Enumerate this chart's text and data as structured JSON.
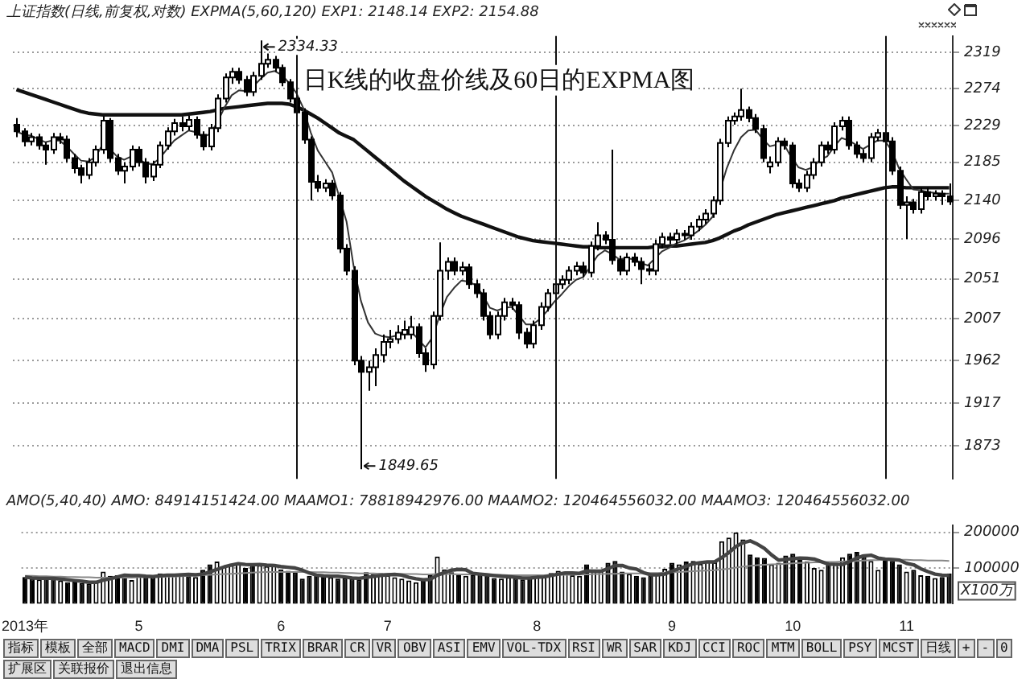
{
  "chart_data": [
    {
      "type": "candlestick",
      "subtitle": "上证指数(日线,前复权,对数) EXPMA(5,60,120) EXP1: 2148.14 EXP2: 2154.88",
      "title": "日K线的收盘价线及60日的EXPMA图",
      "categories": [
        null,
        null,
        null,
        null,
        null,
        null,
        null,
        null,
        null,
        null,
        null,
        null,
        null,
        null,
        null,
        null,
        null,
        null,
        null,
        null,
        null,
        null,
        null,
        null,
        null,
        null,
        null,
        null,
        null,
        null,
        null,
        null,
        null,
        null,
        null,
        null,
        null,
        null,
        null,
        null,
        null,
        null,
        null,
        null,
        null,
        null,
        null,
        null,
        null,
        null,
        null,
        null,
        null,
        null,
        null,
        null,
        null,
        null,
        null,
        null,
        null,
        null,
        null,
        null,
        null,
        null,
        null,
        null,
        null,
        null,
        null,
        null,
        null,
        null,
        null,
        null,
        null,
        null,
        null,
        null,
        null,
        null,
        null,
        null,
        null,
        null,
        null,
        null,
        null,
        null,
        null,
        null,
        null,
        null,
        null,
        null,
        null,
        null,
        null,
        null,
        null,
        null,
        null,
        null,
        null,
        null,
        null,
        null,
        null,
        null,
        null,
        null,
        null,
        null,
        null,
        null,
        null,
        null,
        null,
        null,
        null,
        null,
        null,
        null,
        null,
        null,
        null,
        null,
        null,
        null,
        null
      ],
      "ohlc": [
        [
          2230,
          2238,
          2215,
          2222
        ],
        [
          2222,
          2226,
          2204,
          2210
        ],
        [
          2210,
          2220,
          2205,
          2215
        ],
        [
          2215,
          2219,
          2200,
          2205
        ],
        [
          2205,
          2209,
          2182,
          2200
        ],
        [
          2200,
          2220,
          2195,
          2215
        ],
        [
          2215,
          2220,
          2207,
          2212
        ],
        [
          2212,
          2217,
          2185,
          2190
        ],
        [
          2190,
          2195,
          2172,
          2178
        ],
        [
          2178,
          2182,
          2160,
          2170
        ],
        [
          2170,
          2190,
          2165,
          2185
        ],
        [
          2185,
          2205,
          2180,
          2200
        ],
        [
          2200,
          2240,
          2195,
          2235
        ],
        [
          2235,
          2238,
          2185,
          2190
        ],
        [
          2190,
          2195,
          2170,
          2175
        ],
        [
          2175,
          2185,
          2160,
          2180
        ],
        [
          2180,
          2205,
          2175,
          2200
        ],
        [
          2200,
          2204,
          2180,
          2185
        ],
        [
          2185,
          2190,
          2160,
          2168
        ],
        [
          2168,
          2187,
          2163,
          2182
        ],
        [
          2182,
          2210,
          2178,
          2205
        ],
        [
          2205,
          2227,
          2200,
          2222
        ],
        [
          2222,
          2237,
          2217,
          2232
        ],
        [
          2232,
          2240,
          2222,
          2228
        ],
        [
          2228,
          2241,
          2223,
          2236
        ],
        [
          2236,
          2240,
          2213,
          2218
        ],
        [
          2218,
          2222,
          2199,
          2204
        ],
        [
          2204,
          2231,
          2199,
          2226
        ],
        [
          2226,
          2267,
          2221,
          2262
        ],
        [
          2262,
          2293,
          2257,
          2288
        ],
        [
          2288,
          2300,
          2280,
          2295
        ],
        [
          2295,
          2300,
          2280,
          2285
        ],
        [
          2285,
          2290,
          2265,
          2270
        ],
        [
          2270,
          2295,
          2265,
          2290
        ],
        [
          2290,
          2334.33,
          2285,
          2305
        ],
        [
          2305,
          2318,
          2300,
          2310
        ],
        [
          2310,
          2315,
          2295,
          2300
        ],
        [
          2300,
          2304,
          2277,
          2282
        ],
        [
          2282,
          2286,
          2257,
          2262
        ],
        [
          2262,
          2266,
          2240,
          2245
        ],
        [
          2245,
          2250,
          2207,
          2212
        ],
        [
          2212,
          2216,
          2140,
          2162
        ],
        [
          2162,
          2170,
          2150,
          2155
        ],
        [
          2155,
          2165,
          2150,
          2160
        ],
        [
          2160,
          2164,
          2141,
          2146
        ],
        [
          2146,
          2150,
          2080,
          2085
        ],
        [
          2085,
          2090,
          2055,
          2060
        ],
        [
          2060,
          2065,
          1957,
          1962
        ],
        [
          1962,
          1967,
          1849.65,
          1950
        ],
        [
          1950,
          1962,
          1930,
          1955
        ],
        [
          1955,
          1975,
          1935,
          1968
        ],
        [
          1968,
          1990,
          1960,
          1982
        ],
        [
          1982,
          1995,
          1975,
          1985
        ],
        [
          1985,
          2000,
          1980,
          1992
        ],
        [
          1990,
          2005,
          1985,
          1995
        ],
        [
          1990,
          2010,
          1985,
          1998
        ],
        [
          1998,
          2002,
          1965,
          1970
        ],
        [
          1970,
          1975,
          1950,
          1958
        ],
        [
          1958,
          2015,
          1953,
          2010
        ],
        [
          2010,
          2092,
          2005,
          2060
        ],
        [
          2060,
          2075,
          2050,
          2070
        ],
        [
          2070,
          2075,
          2055,
          2060
        ],
        [
          2060,
          2070,
          2055,
          2064
        ],
        [
          2064,
          2068,
          2040,
          2045
        ],
        [
          2045,
          2050,
          2030,
          2035
        ],
        [
          2035,
          2040,
          2005,
          2010
        ],
        [
          2010,
          2015,
          1985,
          1990
        ],
        [
          1990,
          2015,
          1985,
          2010
        ],
        [
          2010,
          2030,
          2005,
          2025
        ],
        [
          2025,
          2030,
          2017,
          2022
        ],
        [
          2022,
          2026,
          1985,
          1992
        ],
        [
          1992,
          1997,
          1975,
          1980
        ],
        [
          1980,
          2005,
          1975,
          2000
        ],
        [
          2000,
          2025,
          1995,
          2020
        ],
        [
          2020,
          2040,
          2015,
          2035
        ],
        [
          2035,
          2050,
          2030,
          2045
        ],
        [
          2045,
          2055,
          2040,
          2050
        ],
        [
          2050,
          2065,
          2045,
          2060
        ],
        [
          2060,
          2070,
          2055,
          2065
        ],
        [
          2065,
          2070,
          2053,
          2058
        ],
        [
          2058,
          2093,
          2053,
          2088
        ],
        [
          2088,
          2115,
          2083,
          2100
        ],
        [
          2100,
          2105,
          2090,
          2095
        ],
        [
          2095,
          2200,
          2067,
          2072
        ],
        [
          2072,
          2077,
          2055,
          2060
        ],
        [
          2060,
          2080,
          2055,
          2075
        ],
        [
          2075,
          2080,
          2065,
          2070
        ],
        [
          2070,
          2075,
          2045,
          2062
        ],
        [
          2062,
          2067,
          2055,
          2060
        ],
        [
          2060,
          2095,
          2055,
          2090
        ],
        [
          2090,
          2103,
          2085,
          2098
        ],
        [
          2098,
          2103,
          2090,
          2095
        ],
        [
          2095,
          2107,
          2090,
          2102
        ],
        [
          2102,
          2106,
          2095,
          2100
        ],
        [
          2100,
          2115,
          2095,
          2110
        ],
        [
          2110,
          2123,
          2105,
          2118
        ],
        [
          2118,
          2130,
          2113,
          2125
        ],
        [
          2125,
          2145,
          2120,
          2140
        ],
        [
          2140,
          2213,
          2135,
          2208
        ],
        [
          2208,
          2240,
          2203,
          2235
        ],
        [
          2235,
          2245,
          2230,
          2240
        ],
        [
          2240,
          2274,
          2235,
          2248
        ],
        [
          2248,
          2252,
          2233,
          2238
        ],
        [
          2238,
          2243,
          2220,
          2225
        ],
        [
          2225,
          2230,
          2185,
          2190
        ],
        [
          2180,
          2192,
          2172,
          2185
        ],
        [
          2185,
          2215,
          2180,
          2210
        ],
        [
          2210,
          2214,
          2200,
          2205
        ],
        [
          2205,
          2209,
          2155,
          2160
        ],
        [
          2160,
          2165,
          2150,
          2155
        ],
        [
          2155,
          2175,
          2150,
          2170
        ],
        [
          2170,
          2190,
          2165,
          2185
        ],
        [
          2185,
          2210,
          2180,
          2205
        ],
        [
          2205,
          2210,
          2195,
          2200
        ],
        [
          2200,
          2233,
          2195,
          2228
        ],
        [
          2228,
          2240,
          2223,
          2235
        ],
        [
          2235,
          2240,
          2200,
          2205
        ],
        [
          2205,
          2210,
          2190,
          2195
        ],
        [
          2195,
          2200,
          2185,
          2190
        ],
        [
          2190,
          2220,
          2185,
          2215
        ],
        [
          2215,
          2225,
          2210,
          2220
        ],
        [
          2220,
          2225,
          2205,
          2210
        ],
        [
          2210,
          2215,
          2170,
          2175
        ],
        [
          2175,
          2180,
          2130,
          2135
        ],
        [
          2135,
          2145,
          2096,
          2138
        ],
        [
          2138,
          2142,
          2125,
          2130
        ],
        [
          2130,
          2155,
          2125,
          2150
        ],
        [
          2150,
          2155,
          2140,
          2145
        ],
        [
          2145,
          2152,
          2140,
          2148
        ],
        [
          2148,
          2152,
          2135,
          2145
        ],
        [
          2145,
          2160,
          2135,
          2139
        ]
      ],
      "series": [
        {
          "type": "line",
          "color": "#333333",
          "values": [
            2222,
            2218,
            2217,
            2213,
            2209,
            2211,
            2211,
            2204,
            2195,
            2187,
            2186,
            2191,
            2206,
            2201,
            2192,
            2188,
            2192,
            2190,
            2183,
            2183,
            2190,
            2201,
            2211,
            2217,
            2223,
            2221,
            2215,
            2219,
            2233,
            2251,
            2266,
            2272,
            2271,
            2277,
            2286,
            2294,
            2296,
            2291,
            2281,
            2269,
            2250,
            2221,
            2199,
            2186,
            2173,
            2144,
            2116,
            2065,
            2027,
            2003,
            1991,
            1988,
            1987,
            1989,
            1991,
            1993,
            1985,
            1976,
            1987,
            2011,
            2031,
            2041,
            2049,
            2048,
            2044,
            2033,
            2019,
            2016,
            2019,
            2020,
            2011,
            2001,
            2001,
            2007,
            2016,
            2026,
            2034,
            2043,
            2050,
            2053,
            2065,
            2077,
            2083,
            2079,
            2073,
            2074,
            2073,
            2069,
            2066,
            2074,
            2082,
            2086,
            2091,
            2094,
            2099,
            2105,
            2112,
            2121,
            2150,
            2178,
            2199,
            2215,
            2223,
            2224,
            2213,
            2204,
            2206,
            2206,
            2191,
            2179,
            2176,
            2179,
            2188,
            2192,
            2204,
            2214,
            2211,
            2206,
            2201,
            2206,
            2211,
            2211,
            2199,
            2178,
            2165,
            2153,
            2152,
            2150,
            2149,
            2148,
            2148
          ]
        },
        {
          "type": "line",
          "color": "#111111",
          "values": [
            2273,
            2270,
            2267,
            2264,
            2261,
            2258,
            2255,
            2252,
            2249,
            2246,
            2244,
            2243,
            2242,
            2242,
            2242,
            2242,
            2242,
            2242,
            2242,
            2242,
            2242,
            2242,
            2242,
            2242,
            2243,
            2244,
            2245,
            2246,
            2248,
            2250,
            2251,
            2252,
            2253,
            2254,
            2255,
            2256,
            2256,
            2256,
            2255,
            2252,
            2248,
            2243,
            2238,
            2232,
            2226,
            2220,
            2216,
            2212,
            2205,
            2198,
            2191,
            2184,
            2177,
            2170,
            2163,
            2157,
            2151,
            2145,
            2140,
            2135,
            2130,
            2126,
            2122,
            2119,
            2116,
            2113,
            2110,
            2107,
            2104,
            2101,
            2098,
            2096,
            2094,
            2093,
            2092,
            2091,
            2090,
            2089,
            2088,
            2087,
            2087,
            2086,
            2086,
            2086,
            2086,
            2086,
            2086,
            2086,
            2086,
            2087,
            2087,
            2088,
            2088,
            2089,
            2090,
            2091,
            2092,
            2094,
            2097,
            2101,
            2105,
            2108,
            2112,
            2115,
            2118,
            2121,
            2124,
            2126,
            2128,
            2130,
            2132,
            2134,
            2136,
            2138,
            2140,
            2143,
            2145,
            2147,
            2149,
            2151,
            2153,
            2155,
            2156,
            2156,
            2155,
            2155,
            2155,
            2155,
            2155,
            2155,
            2155
          ]
        }
      ],
      "ylim": [
        1840,
        2340
      ],
      "yticks": [
        1873,
        1917,
        1962,
        2007,
        2051,
        2096,
        2140,
        2185,
        2229,
        2274,
        2319
      ],
      "log": true,
      "grid": "y",
      "tick_labels": "y",
      "annotations": [
        "2334.33",
        "1849.65"
      ]
    },
    {
      "type": "bar",
      "title": "AMO(5,40,40) AMO: 84914151424.00 MAAMO1: 78818942976.00 MAAMO2: 120464556032.00 MAAMO3: 120464556032.00",
      "categories": [
        "2013年",
        null,
        null,
        null,
        null,
        null,
        null,
        null,
        null,
        null,
        null,
        null,
        null,
        null,
        null,
        null,
        "5",
        null,
        null,
        null,
        null,
        null,
        null,
        null,
        null,
        null,
        null,
        null,
        null,
        null,
        null,
        null,
        null,
        null,
        null,
        null,
        "6",
        null,
        null,
        null,
        null,
        null,
        null,
        null,
        null,
        null,
        null,
        null,
        null,
        null,
        null,
        "7",
        null,
        null,
        null,
        null,
        null,
        null,
        null,
        null,
        null,
        null,
        null,
        null,
        null,
        null,
        null,
        null,
        null,
        null,
        null,
        null,
        "8",
        null,
        null,
        null,
        null,
        null,
        null,
        null,
        null,
        null,
        null,
        null,
        null,
        null,
        null,
        null,
        null,
        null,
        null,
        "9",
        null,
        null,
        null,
        null,
        null,
        null,
        null,
        null,
        null,
        null,
        null,
        null,
        null,
        null,
        null,
        null,
        "10",
        null,
        null,
        null,
        null,
        null,
        null,
        null,
        null,
        null,
        null,
        null,
        null,
        null,
        null,
        null,
        "11",
        null,
        null,
        null,
        null,
        null,
        null
      ],
      "series": [
        {
          "type": "bar",
          "values": [
            75000,
            70000,
            68000,
            72000,
            70000,
            65000,
            60000,
            62000,
            58000,
            56000,
            62000,
            90000,
            78000,
            80000,
            82000,
            66000,
            80000,
            78000,
            75000,
            85000,
            80000,
            82000,
            85000,
            78000,
            75000,
            95000,
            110000,
            118000,
            105000,
            112000,
            115000,
            100000,
            110000,
            108000,
            105000,
            112000,
            96000,
            92000,
            88000,
            70000,
            78000,
            82000,
            80000,
            74000,
            70000,
            72000,
            70000,
            68000,
            88000,
            82000,
            86000,
            80000,
            74000,
            70000,
            65000,
            60000,
            66000,
            82000,
            132000,
            96000,
            88000,
            80000,
            78000,
            82000,
            85000,
            78000,
            72000,
            70000,
            74000,
            72000,
            68000,
            76000,
            78000,
            82000,
            86000,
            92000,
            90000,
            80000,
            78000,
            110000,
            96000,
            92000,
            115000,
            120000,
            90000,
            84000,
            78000,
            74000,
            80000,
            86000,
            98000,
            115000,
            110000,
            118000,
            120000,
            112000,
            118000,
            116000,
            175000,
            185000,
            200000,
            180000,
            138000,
            130000,
            128000,
            110000,
            115000,
            135000,
            140000,
            130000,
            118000,
            100000,
            95000,
            112000,
            115000,
            130000,
            140000,
            145000,
            138000,
            120000,
            95000,
            128000,
            120000,
            110000,
            90000,
            95000,
            80000,
            78000,
            72000,
            75000,
            85000
          ],
          "colors": [
            "#000000",
            "#000000",
            "#ffffff",
            "#000000",
            "#000000",
            "#ffffff",
            "#000000",
            "#000000",
            "#000000",
            "#000000",
            "#ffffff",
            "#ffffff",
            "#ffffff",
            "#000000",
            "#000000",
            "#ffffff",
            "#ffffff",
            "#000000",
            "#000000",
            "#ffffff",
            "#ffffff",
            "#ffffff",
            "#ffffff",
            "#000000",
            "#ffffff",
            "#000000",
            "#000000",
            "#ffffff",
            "#ffffff",
            "#ffffff",
            "#ffffff",
            "#000000",
            "#000000",
            "#ffffff",
            "#ffffff",
            "#ffffff",
            "#000000",
            "#000000",
            "#000000",
            "#000000",
            "#000000",
            "#000000",
            "#000000",
            "#ffffff",
            "#000000",
            "#000000",
            "#000000",
            "#000000",
            "#000000",
            "#ffffff",
            "#ffffff",
            "#ffffff",
            "#ffffff",
            "#ffffff",
            "#ffffff",
            "#ffffff",
            "#000000",
            "#000000",
            "#ffffff",
            "#ffffff",
            "#ffffff",
            "#000000",
            "#ffffff",
            "#000000",
            "#000000",
            "#000000",
            "#000000",
            "#ffffff",
            "#ffffff",
            "#000000",
            "#000000",
            "#000000",
            "#ffffff",
            "#ffffff",
            "#ffffff",
            "#ffffff",
            "#ffffff",
            "#ffffff",
            "#ffffff",
            "#000000",
            "#ffffff",
            "#ffffff",
            "#000000",
            "#000000",
            "#000000",
            "#ffffff",
            "#000000",
            "#000000",
            "#000000",
            "#ffffff",
            "#ffffff",
            "#000000",
            "#ffffff",
            "#000000",
            "#ffffff",
            "#ffffff",
            "#ffffff",
            "#ffffff",
            "#ffffff",
            "#ffffff",
            "#ffffff",
            "#ffffff",
            "#000000",
            "#000000",
            "#000000",
            "#ffffff",
            "#ffffff",
            "#000000",
            "#000000",
            "#000000",
            "#ffffff",
            "#ffffff",
            "#ffffff",
            "#000000",
            "#ffffff",
            "#ffffff",
            "#000000",
            "#000000",
            "#000000",
            "#ffffff",
            "#ffffff",
            "#000000",
            "#000000",
            "#000000",
            "#ffffff",
            "#000000",
            "#ffffff",
            "#000000",
            "#ffffff",
            "#000000",
            "#000000"
          ]
        },
        {
          "type": "line",
          "color": "#444444",
          "values": [
            75000,
            72000,
            71000,
            71000,
            71000,
            69000,
            67000,
            65000,
            63000,
            60000,
            60000,
            66000,
            70000,
            75000,
            80000,
            79000,
            79000,
            77000,
            76000,
            78000,
            80000,
            80000,
            81000,
            82000,
            81000,
            83000,
            89000,
            96000,
            103000,
            108000,
            112000,
            110000,
            109000,
            110000,
            108000,
            107000,
            104000,
            102000,
            100000,
            94000,
            86000,
            80000,
            78000,
            77000,
            77000,
            75000,
            72000,
            71000,
            74000,
            76000,
            79000,
            81000,
            82000,
            80000,
            74000,
            70000,
            67000,
            68000,
            80000,
            87000,
            94000,
            96000,
            95000,
            85000,
            83000,
            81000,
            79000,
            77000,
            76000,
            74000,
            72000,
            72000,
            74000,
            75000,
            79000,
            83000,
            86000,
            86000,
            85000,
            92000,
            91000,
            91000,
            98000,
            107000,
            107000,
            100000,
            97000,
            87000,
            81000,
            81000,
            83000,
            91000,
            98000,
            105000,
            112000,
            115000,
            117000,
            117000,
            129000,
            143000,
            160000,
            171000,
            176000,
            167000,
            155000,
            137000,
            122000,
            124000,
            126000,
            128000,
            127000,
            125000,
            118000,
            111000,
            110000,
            110000,
            118000,
            128000,
            134000,
            136000,
            128000,
            125000,
            124000,
            122000,
            113000,
            109000,
            98000,
            90000,
            83000,
            80000,
            79000
          ]
        },
        {
          "type": "line",
          "color": "#888888",
          "values": [
            78000,
            78000,
            77000,
            77000,
            76000,
            76000,
            75000,
            75000,
            74000,
            74000,
            73000,
            73000,
            73000,
            73000,
            73000,
            73000,
            74000,
            74000,
            75000,
            75000,
            76000,
            76000,
            77000,
            78000,
            79000,
            80000,
            81000,
            82000,
            83000,
            84000,
            85000,
            86000,
            87000,
            88000,
            89000,
            89000,
            89000,
            89000,
            89000,
            89000,
            89000,
            88000,
            88000,
            87000,
            87000,
            86000,
            86000,
            85000,
            85000,
            85000,
            84000,
            84000,
            84000,
            83000,
            83000,
            83000,
            82000,
            82000,
            83000,
            83000,
            83000,
            82000,
            82000,
            82000,
            82000,
            81000,
            81000,
            81000,
            80000,
            80000,
            80000,
            80000,
            80000,
            80000,
            81000,
            81000,
            81000,
            81000,
            82000,
            82000,
            83000,
            83000,
            84000,
            84000,
            85000,
            85000,
            85000,
            85000,
            86000,
            86000,
            87000,
            88000,
            89000,
            90000,
            91000,
            92000,
            93000,
            94000,
            96000,
            98000,
            101000,
            104000,
            106000,
            108000,
            109000,
            110000,
            111000,
            112000,
            113000,
            114000,
            115000,
            116000,
            116000,
            117000,
            117000,
            118000,
            119000,
            120000,
            121000,
            122000,
            122000,
            123000,
            123000,
            123000,
            123000,
            122000,
            122000,
            121000,
            121000,
            121000,
            120000
          ]
        }
      ],
      "ylim": [
        0,
        220000
      ],
      "yticks": [
        100000,
        200000
      ],
      "grid": "y",
      "annotations": [
        "X100万"
      ]
    },
    {
      "type": "other",
      "annotations": [
        "指标",
        "模板",
        "全部",
        "MACD",
        "DMI",
        "DMA",
        "PSL",
        "TRIX",
        "BRAR",
        "CR",
        "VR",
        "OBV",
        "ASI",
        "EMV",
        "VOL-TDX",
        "RSI",
        "WR",
        "SAR",
        "KDJ",
        "CCI",
        "ROC",
        "MTM",
        "BOLL",
        "PSY",
        "MCST",
        "日线",
        "+",
        "-",
        "0",
        "扩展区",
        "关联报价",
        "退出信息"
      ]
    }
  ]
}
